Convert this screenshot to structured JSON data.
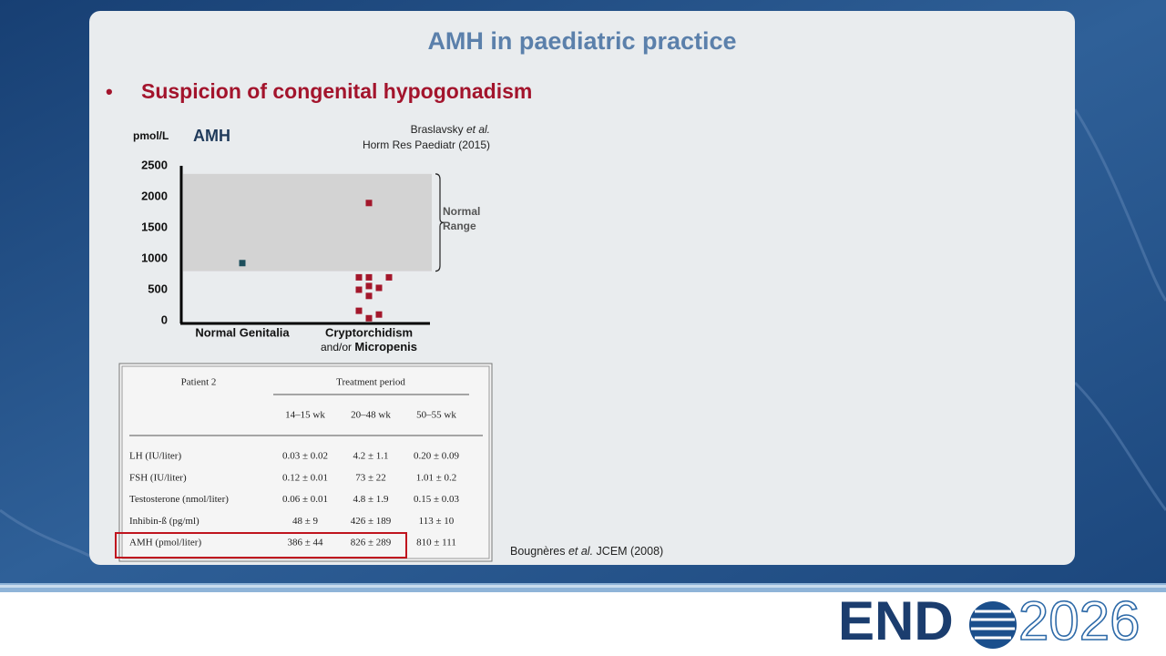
{
  "slide": {
    "title": "AMH in paediatric practice",
    "bullet": "•",
    "heading": "Suspicion of congenital hypogonadism"
  },
  "chart_data": {
    "type": "strip",
    "unit": "pmol/L",
    "series_title": "AMH",
    "citation": {
      "author": "Braslavsky",
      "etal": "et al.",
      "journal": "Horm Res Paediatr (2015)"
    },
    "categories": [
      "Normal Genitalia",
      "Cryptorchidism"
    ],
    "category_note": {
      "prefix": "and/or",
      "bold": "Micropenis"
    },
    "values": [
      [
        930
      ],
      [
        1900,
        700,
        700,
        700,
        560,
        530,
        500,
        400,
        160,
        100,
        40
      ]
    ],
    "colors": [
      "#1d4f5c",
      "#a3172b"
    ],
    "normal_range": {
      "values": [
        800,
        2370
      ],
      "label": "Normal Range",
      "color": "#d3d3d3"
    },
    "ylim": [
      0,
      2500
    ],
    "yticks": [
      0,
      500,
      1000,
      1500,
      2000,
      2500
    ]
  },
  "table": {
    "header": {
      "patient": "Patient 2",
      "period": "Treatment period",
      "columns": [
        "14–15 wk",
        "20–48 wk",
        "50–55 wk"
      ]
    },
    "rows": [
      [
        "LH (IU/liter)",
        "0.03 ± 0.02",
        "4.2 ± 1.1",
        "0.20 ± 0.09"
      ],
      [
        "FSH (IU/liter)",
        "0.12 ± 0.01",
        "73 ± 22",
        "1.01 ± 0.2"
      ],
      [
        "Testosterone (nmol/liter)",
        "0.06 ± 0.01",
        "4.8 ± 1.9",
        "0.15 ± 0.03"
      ],
      [
        "Inhibin-ß (pg/ml)",
        "48 ± 9",
        "426 ± 189",
        "113 ± 10"
      ],
      [
        "AMH (pmol/liter)",
        "386 ± 44",
        "826 ± 289",
        "810 ± 111"
      ]
    ],
    "citation": {
      "author": "Bougnères",
      "etal": "et al.",
      "journal": "JCEM (2008)"
    }
  },
  "footer": {
    "logo_left": "END",
    "logo_right": "2026"
  }
}
